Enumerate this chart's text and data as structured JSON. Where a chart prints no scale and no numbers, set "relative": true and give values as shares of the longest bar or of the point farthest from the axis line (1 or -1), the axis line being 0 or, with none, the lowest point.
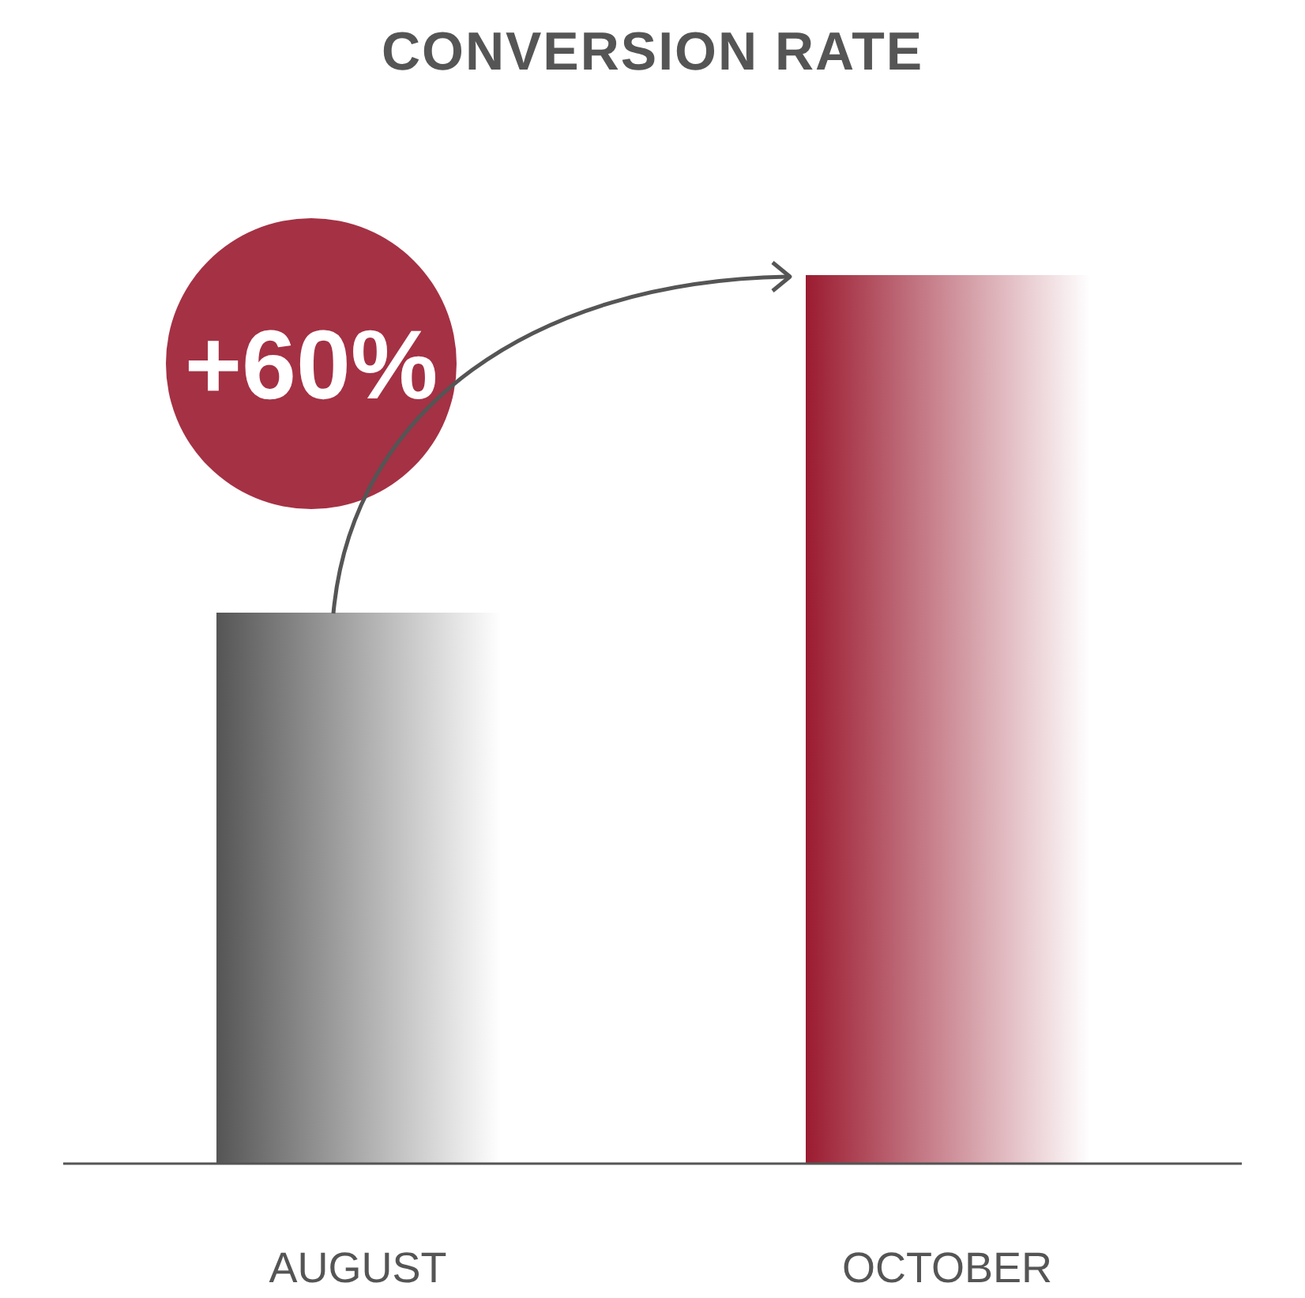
{
  "chart_data": {
    "type": "bar",
    "title": "CONVERSION RATE",
    "relative": true,
    "categories": [
      "AUGUST",
      "OCTOBER"
    ],
    "values": [
      0.62,
      1
    ],
    "colors": [
      "#555555",
      "#9b1b30"
    ],
    "annotations": [
      "+60%"
    ]
  }
}
